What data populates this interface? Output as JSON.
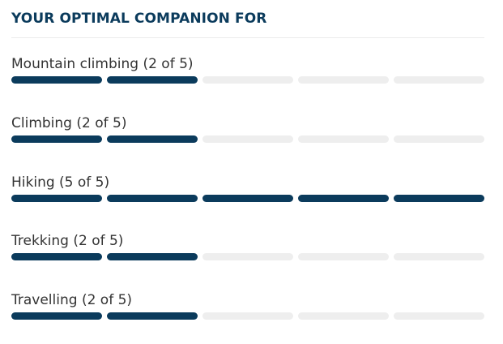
{
  "heading": "YOUR OPTIMAL COMPANION FOR",
  "colors": {
    "filled": "#0b3b5c",
    "empty": "#eeeeee",
    "heading": "#0b3b5c",
    "label": "#333333"
  },
  "activities": [
    {
      "label": "Mountain climbing (2 of 5)",
      "rating": 2,
      "max": 5
    },
    {
      "label": "Climbing (2 of 5)",
      "rating": 2,
      "max": 5
    },
    {
      "label": "Hiking (5 of 5)",
      "rating": 5,
      "max": 5
    },
    {
      "label": "Trekking (2 of 5)",
      "rating": 2,
      "max": 5
    },
    {
      "label": "Travelling (2 of 5)",
      "rating": 2,
      "max": 5
    }
  ]
}
